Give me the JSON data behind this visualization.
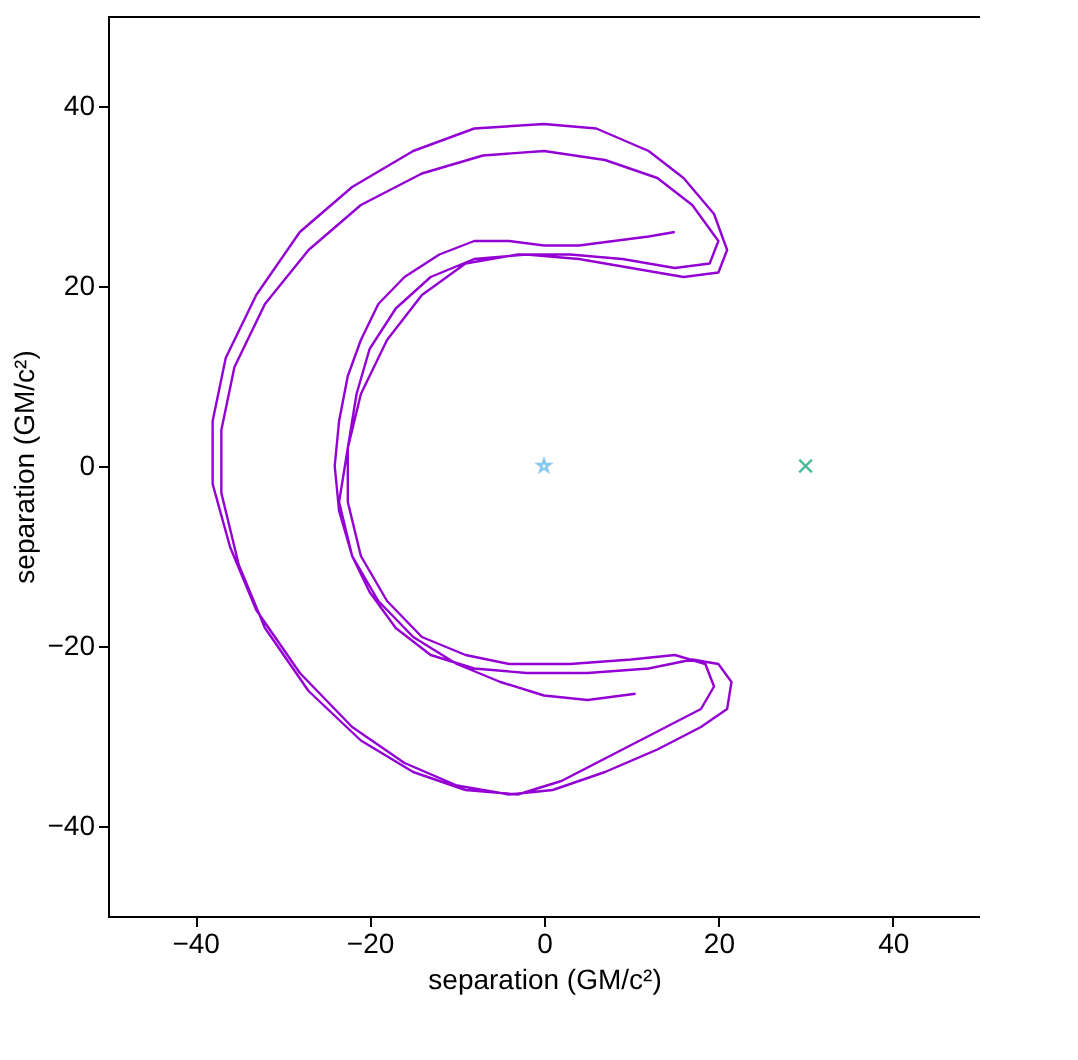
{
  "chart_data": {
    "type": "line",
    "xlabel": "separation (GM/c²)",
    "ylabel": "separation (GM/c²)",
    "xlim": [
      -50,
      50
    ],
    "ylim": [
      -50,
      50
    ],
    "xticks": [
      -40,
      -20,
      0,
      20,
      40
    ],
    "yticks": [
      -40,
      -20,
      0,
      20,
      40
    ],
    "grid": false,
    "series": [
      {
        "color": "#9400d3",
        "line_style": "solid",
        "marker": "none",
        "x": [
          15,
          12,
          8,
          4,
          0,
          -4,
          -8,
          -12,
          -16,
          -19,
          -21,
          -22.5,
          -23.5,
          -24,
          -23.5,
          -22,
          -20,
          -17,
          -13,
          -8,
          -2,
          5,
          12,
          17,
          20,
          21.5,
          21,
          18,
          13,
          7,
          1,
          -4,
          -10,
          -16,
          -22,
          -28,
          -33,
          -36,
          -38,
          -38,
          -36.5,
          -33,
          -28,
          -22,
          -15,
          -8,
          0,
          6,
          12,
          16,
          19.5,
          21,
          20,
          16,
          10,
          4,
          -2,
          -8,
          -13,
          -17,
          -20,
          -21.5,
          -22.5,
          -22.5,
          -21,
          -18,
          -14,
          -9,
          -4,
          3,
          10,
          15,
          18.5,
          19.5,
          18,
          14,
          8,
          2,
          -3,
          -9,
          -15,
          -21,
          -27,
          -32,
          -35,
          -37,
          -37,
          -35.5,
          -32,
          -27,
          -21,
          -14,
          -7,
          0,
          7,
          13,
          17,
          20,
          19,
          15,
          9,
          3,
          -3,
          -9,
          -14,
          -18,
          -21,
          -22.5,
          -23.5,
          -22,
          -19,
          -15,
          -10,
          -5,
          0,
          5,
          10.5
        ],
        "values": [
          26,
          25.5,
          25,
          24.5,
          24.5,
          25,
          25,
          23.5,
          21,
          18,
          14,
          10,
          5,
          0,
          -5,
          -10,
          -14,
          -18,
          -21,
          -22.5,
          -23,
          -23,
          -22.5,
          -21.5,
          -22,
          -24,
          -27,
          -29,
          -31.5,
          -34,
          -36,
          -36.5,
          -35.5,
          -33,
          -29,
          -23,
          -16,
          -9,
          -2,
          5,
          12,
          19,
          26,
          31,
          35,
          37.5,
          38,
          37.5,
          35,
          32,
          28,
          24,
          21.5,
          21,
          22,
          23,
          23.5,
          23,
          21,
          17.5,
          13,
          8,
          2,
          -4,
          -10,
          -15,
          -19,
          -21,
          -22,
          -22,
          -21.5,
          -21,
          -22,
          -24.5,
          -27,
          -29,
          -32,
          -35,
          -36.5,
          -36,
          -34,
          -30.5,
          -25,
          -18,
          -11,
          -3,
          4,
          11,
          18,
          24,
          29,
          32.5,
          34.5,
          35,
          34,
          32,
          29,
          25,
          22.5,
          22,
          23,
          23.5,
          23.5,
          22.5,
          19,
          14,
          8,
          2,
          -4,
          -10,
          -15,
          -19,
          -22,
          -24,
          -25.5,
          -26,
          -25.3
        ]
      },
      {
        "type": "scatter",
        "color": "#56b4e9",
        "marker": "star",
        "x": [
          0
        ],
        "values": [
          0
        ]
      },
      {
        "type": "scatter",
        "color": "#009e73",
        "marker": "cross",
        "x": [
          30
        ],
        "values": [
          0
        ]
      }
    ]
  }
}
